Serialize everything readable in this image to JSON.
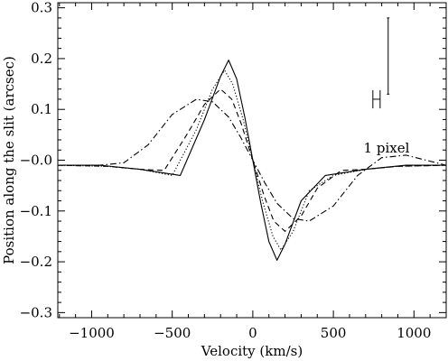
{
  "chart_data": {
    "type": "line",
    "xlabel": "Velocity (km/s)",
    "ylabel": "Position along the slit (arcsec)",
    "xlim": [
      -1210,
      1200
    ],
    "ylim": [
      -0.31,
      0.31
    ],
    "xticks": [
      -1000,
      -500,
      0,
      500,
      1000
    ],
    "xtick_labels": [
      "−1000",
      "−500",
      "0",
      "500",
      "1000"
    ],
    "yticks": [
      -0.3,
      -0.2,
      -0.1,
      0.0,
      0.1,
      0.2,
      0.3
    ],
    "ytick_labels": [
      "−0.3",
      "−0.2",
      "−0.1",
      "−0.0",
      "0.1",
      "0.2",
      "0.3"
    ],
    "x_minor_step": 100,
    "y_minor_step": 0.02,
    "grid": false,
    "annotation": "1 pixel",
    "error_bars": {
      "horizontal": {
        "x_min": 745,
        "x_max": 790,
        "y": 0.12,
        "cap_half_height": 0.018
      },
      "vertical": {
        "x": 840,
        "y_min": 0.13,
        "y_max": 0.28,
        "cap_half_width": 8
      }
    },
    "series": [
      {
        "style": "solid",
        "x": [
          -1210,
          -950,
          -700,
          -450,
          -300,
          -200,
          -150,
          -100,
          -50,
          0,
          50,
          100,
          150,
          200,
          300,
          450,
          700,
          950,
          1200
        ],
        "y": [
          -0.01,
          -0.01,
          -0.018,
          -0.03,
          0.08,
          0.165,
          0.197,
          0.16,
          0.085,
          0.0,
          -0.085,
          -0.16,
          -0.197,
          -0.165,
          -0.08,
          -0.03,
          -0.018,
          -0.01,
          -0.01
        ]
      },
      {
        "style": "dotted",
        "x": [
          -1210,
          -900,
          -700,
          -500,
          -350,
          -250,
          -175,
          -125,
          -60,
          0,
          60,
          125,
          175,
          250,
          350,
          500,
          700,
          900,
          1200
        ],
        "y": [
          -0.01,
          -0.012,
          -0.018,
          -0.03,
          0.06,
          0.14,
          0.177,
          0.15,
          0.08,
          0.0,
          -0.08,
          -0.15,
          -0.177,
          -0.14,
          -0.06,
          -0.03,
          -0.018,
          -0.012,
          -0.01
        ]
      },
      {
        "style": "dashed",
        "x": [
          -1210,
          -900,
          -700,
          -550,
          -400,
          -300,
          -200,
          -130,
          -70,
          0,
          70,
          130,
          200,
          300,
          400,
          550,
          700,
          900,
          1200
        ],
        "y": [
          -0.01,
          -0.012,
          -0.018,
          -0.02,
          0.055,
          0.11,
          0.14,
          0.12,
          0.07,
          0.0,
          -0.07,
          -0.12,
          -0.14,
          -0.11,
          -0.055,
          -0.02,
          -0.018,
          -0.012,
          -0.01
        ]
      },
      {
        "style": "dashdot",
        "x": [
          -1210,
          -950,
          -800,
          -650,
          -500,
          -350,
          -250,
          -150,
          -75,
          0,
          75,
          150,
          250,
          350,
          500,
          650,
          800,
          950,
          1200
        ],
        "y": [
          -0.01,
          -0.01,
          -0.005,
          0.03,
          0.09,
          0.12,
          0.115,
          0.085,
          0.045,
          0.0,
          -0.045,
          -0.085,
          -0.115,
          -0.12,
          -0.09,
          -0.03,
          0.005,
          0.01,
          -0.01
        ]
      }
    ]
  }
}
